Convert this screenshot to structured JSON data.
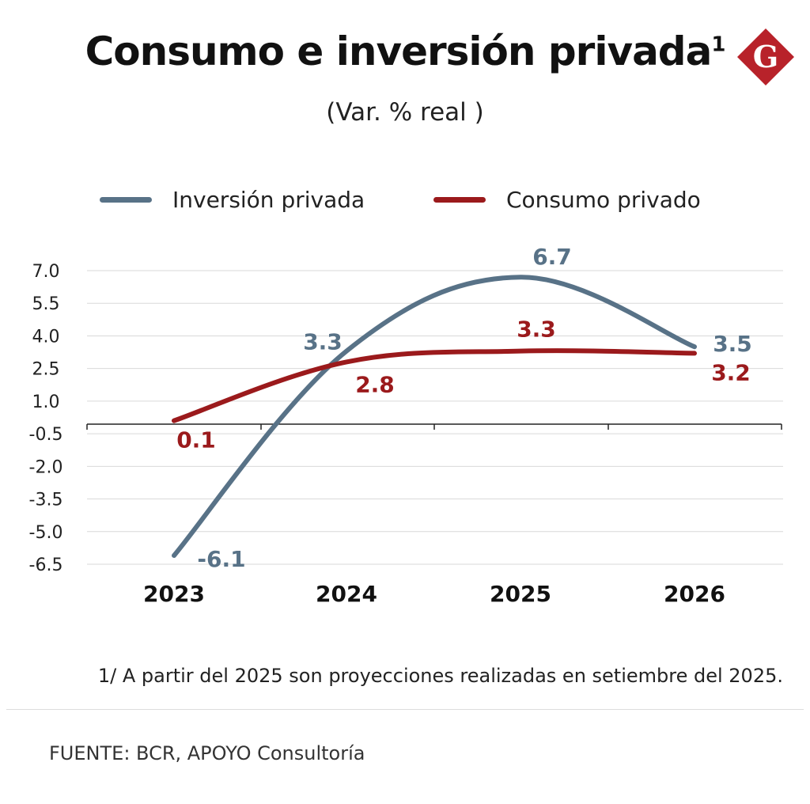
{
  "header": {
    "title": "Consumo e inversión privada",
    "title_superscript": "1",
    "subtitle": "(Var. % real )",
    "logo_letter": "G"
  },
  "colors": {
    "inversion": "#587287",
    "consumo": "#9b1a1c",
    "logo": "#b8222a",
    "grid": "#d9d9d9"
  },
  "chart_data": {
    "type": "line",
    "title": "Consumo e inversión privada",
    "subtitle": "(Var. % real )",
    "xlabel": "",
    "ylabel": "",
    "categories": [
      "2023",
      "2024",
      "2025",
      "2026"
    ],
    "y_ticks": [
      7.0,
      5.5,
      4.0,
      2.5,
      1.0,
      -0.5,
      -2.0,
      -3.5,
      -5.0,
      -6.5
    ],
    "y_tick_labels": [
      "7.0",
      "5.5",
      "4.0",
      "2.5",
      "1.0",
      "-0.5",
      "-2.0",
      "-3.5",
      "-5.0",
      "-6.5"
    ],
    "ylim": [
      -6.5,
      7.0
    ],
    "grid": true,
    "legend_position": "top",
    "series": [
      {
        "name": "Inversión privada",
        "color": "#587287",
        "values": [
          -6.1,
          3.3,
          6.7,
          3.5
        ],
        "labels": [
          "-6.1",
          "3.3",
          "6.7",
          "3.5"
        ]
      },
      {
        "name": "Consumo privado",
        "color": "#9b1a1c",
        "values": [
          0.1,
          2.8,
          3.3,
          3.2
        ],
        "labels": [
          "0.1",
          "2.8",
          "3.3",
          "3.2"
        ]
      }
    ]
  },
  "footnote": "1/ A partir del 2025 son proyecciones realizadas en setiembre del 2025.",
  "source": "FUENTE: BCR, APOYO Consultoría"
}
